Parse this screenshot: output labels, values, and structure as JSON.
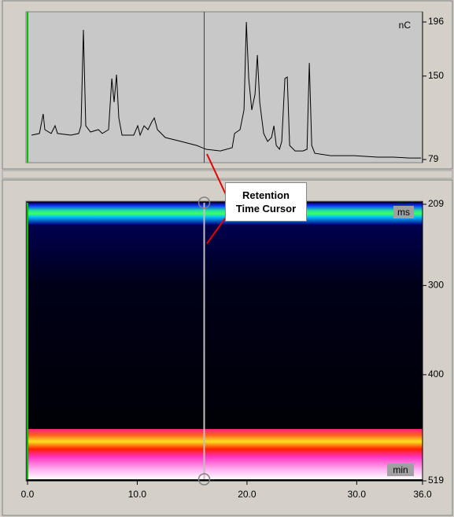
{
  "chart_data": [
    {
      "type": "line",
      "unit_label": "nC",
      "color": "#000000",
      "x": [
        0.36,
        1.08,
        1.43,
        1.58,
        2.15,
        2.51,
        2.73,
        3.95,
        4.66,
        4.88,
        5.09,
        5.31,
        5.74,
        6.46,
        6.81,
        7.39,
        7.68,
        7.89,
        8.11,
        8.32,
        8.61,
        9.68,
        10.04,
        10.26,
        10.62,
        10.98,
        11.33,
        11.55,
        11.84,
        12.55,
        13.99,
        15.42,
        16.28,
        17.58,
        18.65,
        18.87,
        19.37,
        19.73,
        19.94,
        20.16,
        20.44,
        20.73,
        20.95,
        21.16,
        21.52,
        21.88,
        22.24,
        22.45,
        22.67,
        22.96,
        23.17,
        23.46,
        23.67,
        23.89,
        24.39,
        25.11,
        25.47,
        25.68,
        25.9,
        26.18,
        27.62,
        29.77,
        31.92,
        33.36,
        34.79,
        35.87
      ],
      "values": [
        99.7,
        101.1,
        117.8,
        104.4,
        101.1,
        107.7,
        101.1,
        99.7,
        101.1,
        107.7,
        189.3,
        107.7,
        102.4,
        104.4,
        101.1,
        104.4,
        147.9,
        127.8,
        151.2,
        114.4,
        99.7,
        99.7,
        107.7,
        99.7,
        107.7,
        104.4,
        111.1,
        114.4,
        104.4,
        97.7,
        94.4,
        91.0,
        87.7,
        86.3,
        89.0,
        101.1,
        104.4,
        121.1,
        196,
        147.9,
        121.1,
        134.5,
        167.9,
        127.8,
        101.1,
        94.4,
        97.7,
        107.7,
        91.0,
        87.7,
        94.4,
        147.9,
        149.2,
        91.0,
        86.3,
        86.3,
        87.7,
        161.2,
        91.0,
        84.3,
        82.3,
        82.3,
        81.0,
        81.0,
        80.3,
        80.3
      ],
      "xlim": [
        0,
        36
      ],
      "ylim": [
        79,
        196
      ],
      "yticks": [
        79,
        150,
        196
      ]
    },
    {
      "type": "heatmap",
      "unit_label": "ms",
      "x_unit_label": "min",
      "xlim": [
        0,
        36
      ],
      "ylim": [
        209,
        519
      ],
      "y_inverted": true,
      "yticks": [
        209,
        300,
        400,
        519
      ],
      "xticks": [
        {
          "value": 0,
          "label": "0.0"
        },
        {
          "value": 10,
          "label": "10.0"
        },
        {
          "value": 20,
          "label": "20.0"
        },
        {
          "value": 30,
          "label": "30.0"
        },
        {
          "value": 36,
          "label": "36.0"
        }
      ],
      "cursor": 16.1
    }
  ],
  "annotation": "Retention Time Cursor"
}
